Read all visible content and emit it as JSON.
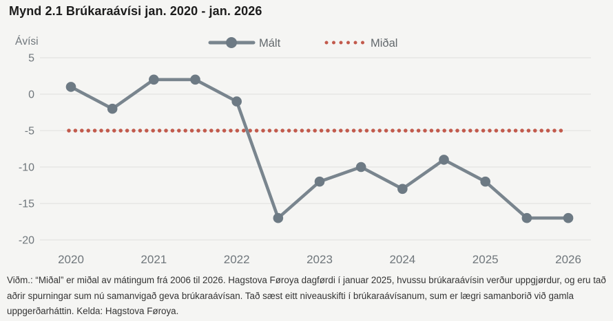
{
  "title": "Mynd 2.1 Brúkaraávísi jan. 2020 - jan. 2026",
  "footnote": "Viðm.: “Miðal” er miðal av mátingum frá 2006 til 2026. Hagstova Føroya dagførdi í januar 2025, hvussu brúkaraávísin verður uppgjørdur, og eru tað aðrir spurningar sum nú samanvigað geva brúkaraávísan. Tað sæst eitt niveauskifti í brúkaraávísanum, sum er lægri samanborið við gamla uppgerðarháttin. Kelda: Hagstova Føroya.",
  "chart_data": {
    "type": "line",
    "title": "Mynd 2.1 Brúkaraávísi jan. 2020 - jan. 2026",
    "ylabel": "Ávísi",
    "xlabel": "",
    "x": [
      2020,
      2020.5,
      2021,
      2021.5,
      2022,
      2022.5,
      2023,
      2023.5,
      2024,
      2024.5,
      2025,
      2025.5,
      2026
    ],
    "series": [
      {
        "name": "Mált",
        "style": "solid-with-markers",
        "color": "#79858e",
        "marker_color": "#6d7a84",
        "values": [
          1,
          -2,
          2,
          2,
          -1,
          -17,
          -12,
          -10,
          -13,
          -9,
          -12,
          -17,
          -17
        ]
      },
      {
        "name": "Miðal",
        "style": "dotted-constant",
        "color": "#c25a4c",
        "constant_value": -5
      }
    ],
    "x_tick_labels": [
      "2020",
      "2021",
      "2022",
      "2023",
      "2024",
      "2025",
      "2026"
    ],
    "y_ticks": [
      5,
      0,
      -5,
      -10,
      -15,
      -20
    ],
    "ylim": [
      -20,
      5
    ],
    "grid": "horizontal",
    "legend_position": "top-center"
  },
  "colors": {
    "background": "#f5f5f3",
    "gridline": "#e3e3e1",
    "axis_text": "#6f767b",
    "malt_line": "#79858e",
    "midal_dots": "#c25a4c",
    "footnote_text": "#333333",
    "title_text": "#1c1c1c"
  }
}
